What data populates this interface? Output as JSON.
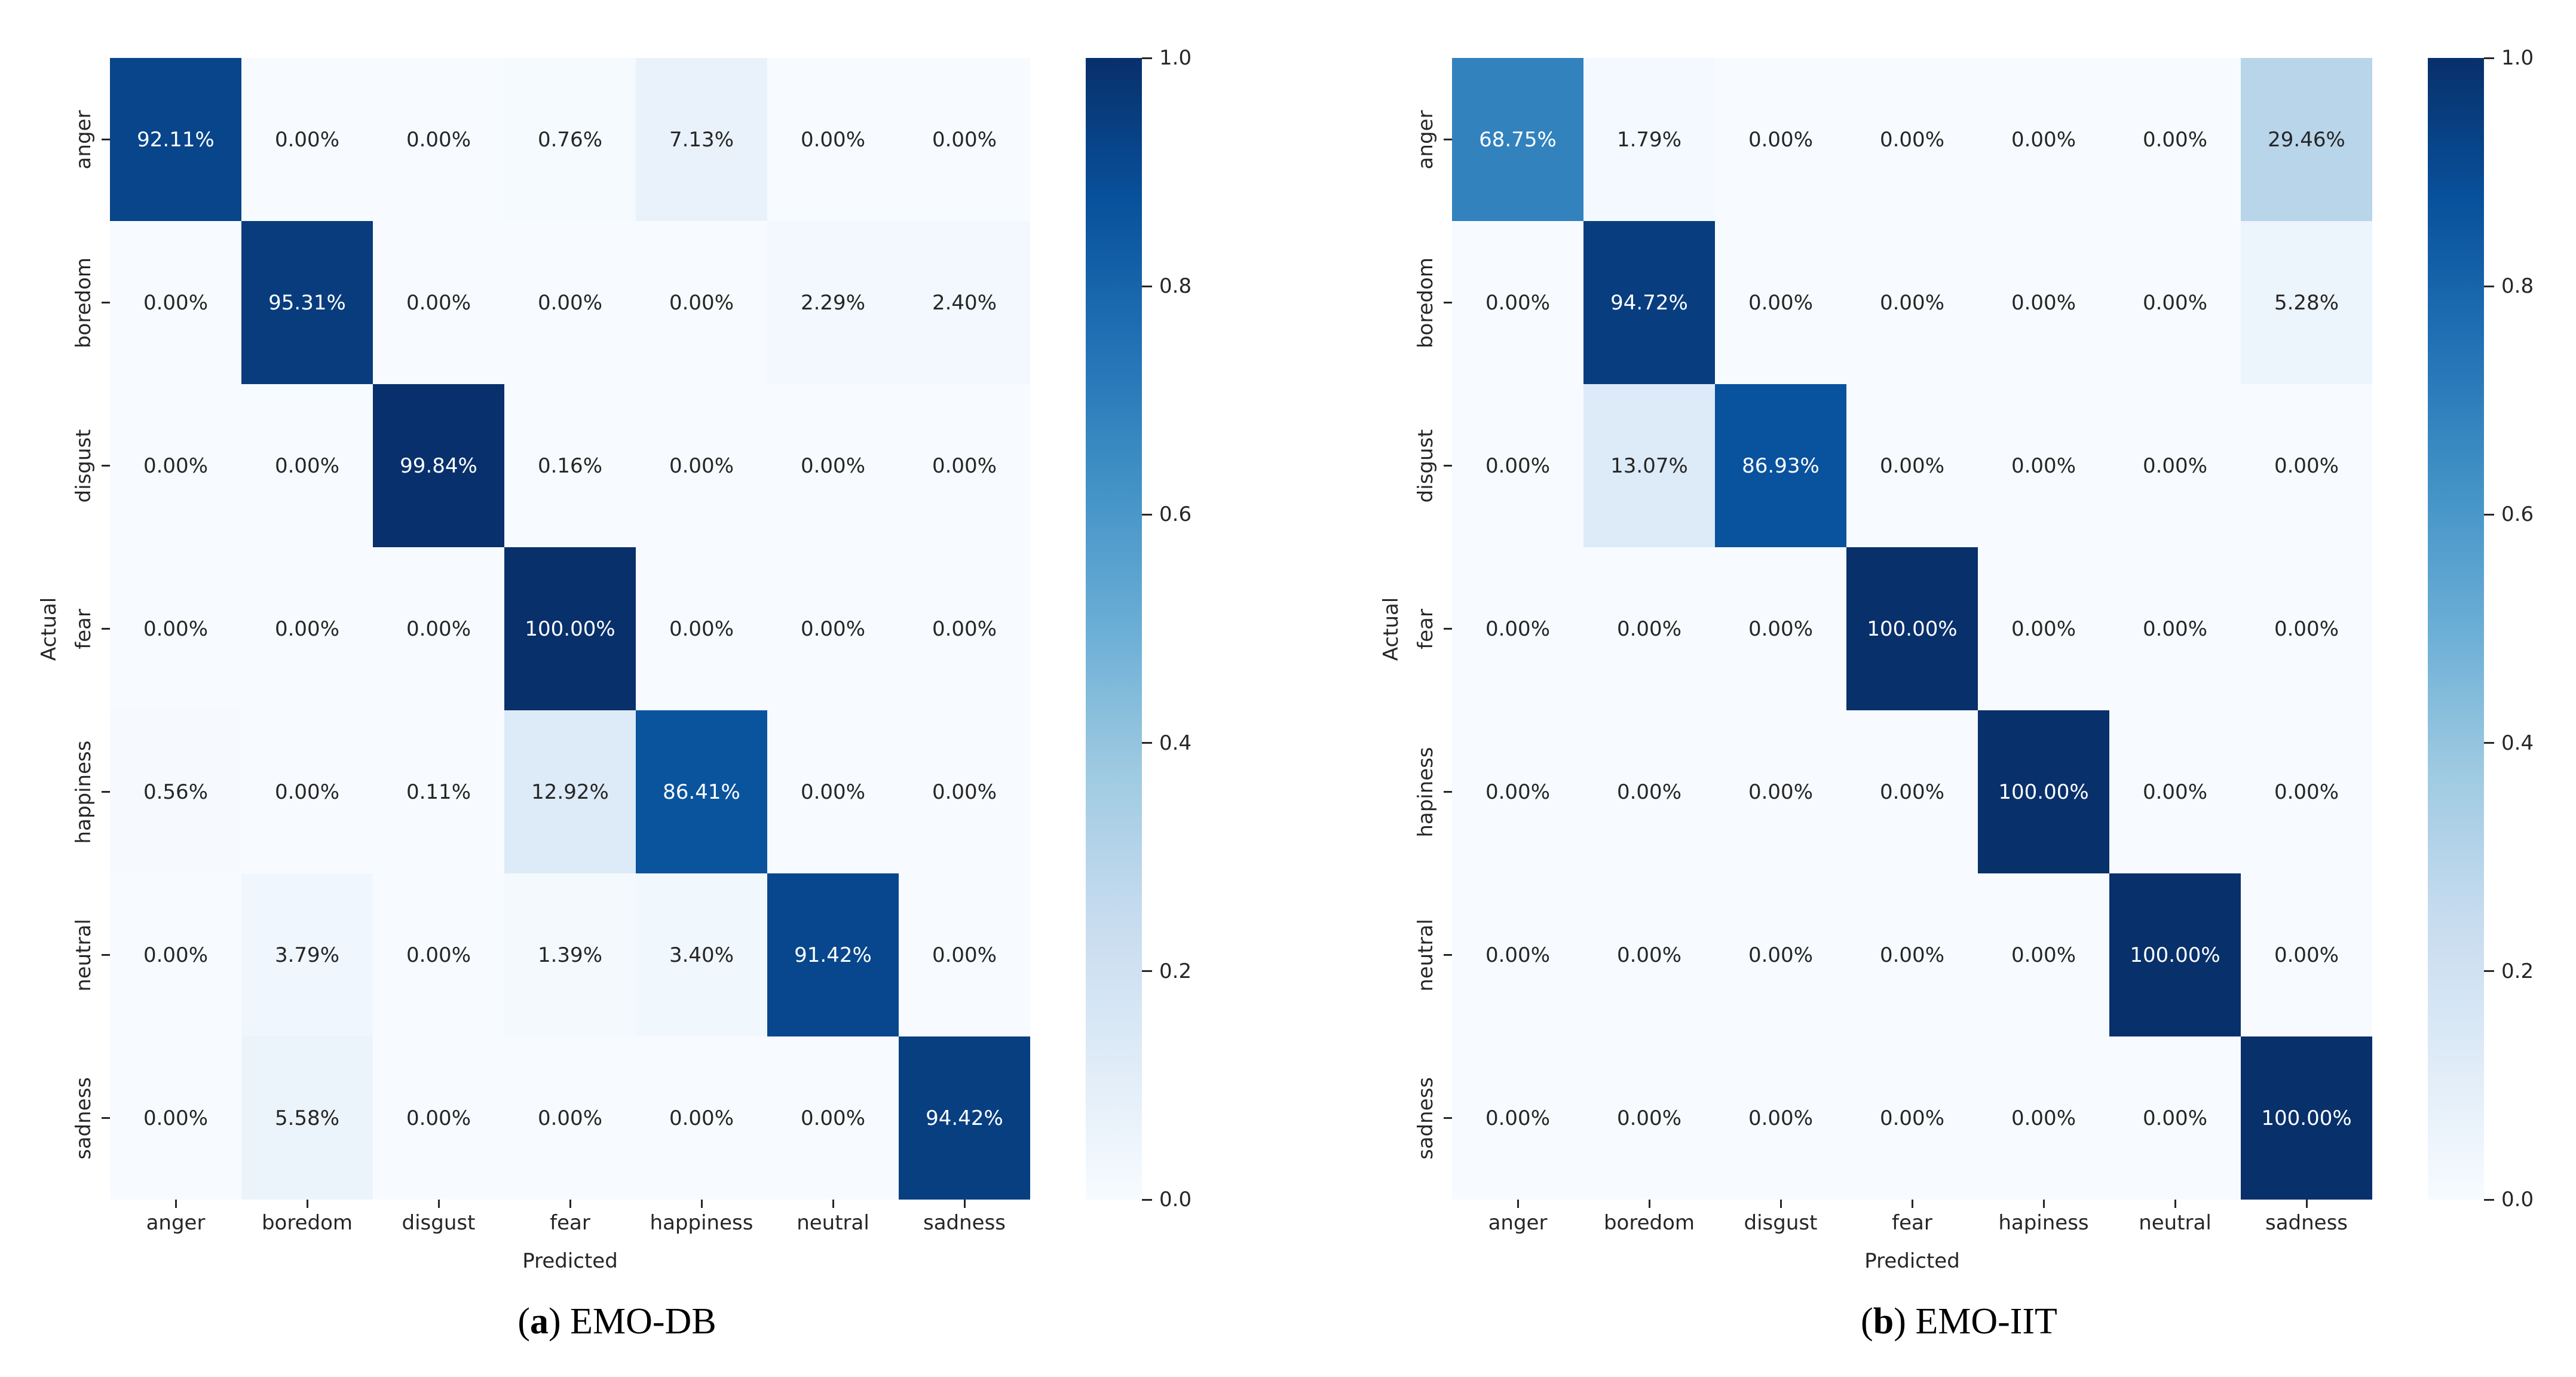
{
  "figure": {
    "background": "#ffffff"
  },
  "colors": {
    "colormap_name": "Blues",
    "colormap_stops": [
      "#f7fbff",
      "#deebf7",
      "#c6dbef",
      "#9ecae1",
      "#6baed6",
      "#4292c6",
      "#2171b5",
      "#08519c",
      "#08306b"
    ],
    "annotation_dark": "#262626",
    "annotation_light": "#ffffff",
    "tick_text": "#262626",
    "caption_text": "#000000"
  },
  "chart_data": [
    {
      "type": "heatmap",
      "dataset": "EMO-DB",
      "caption": {
        "open": "(",
        "letter": "a",
        "close": ") ",
        "title": "EMO-DB"
      },
      "xlabel": "Predicted",
      "ylabel": "Actual",
      "x_categories": [
        "anger",
        "boredom",
        "disgust",
        "fear",
        "happiness",
        "neutral",
        "sadness"
      ],
      "y_categories": [
        "anger",
        "boredom",
        "disgust",
        "fear",
        "happiness",
        "neutral",
        "sadness"
      ],
      "values_percent": [
        [
          92.11,
          0.0,
          0.0,
          0.76,
          7.13,
          0.0,
          0.0
        ],
        [
          0.0,
          95.31,
          0.0,
          0.0,
          0.0,
          2.29,
          2.4
        ],
        [
          0.0,
          0.0,
          99.84,
          0.16,
          0.0,
          0.0,
          0.0
        ],
        [
          0.0,
          0.0,
          0.0,
          100.0,
          0.0,
          0.0,
          0.0
        ],
        [
          0.56,
          0.0,
          0.11,
          12.92,
          86.41,
          0.0,
          0.0
        ],
        [
          0.0,
          3.79,
          0.0,
          1.39,
          3.4,
          91.42,
          0.0
        ],
        [
          0.0,
          5.58,
          0.0,
          0.0,
          0.0,
          0.0,
          94.42
        ]
      ],
      "annotation_format": "{value:.2f}%",
      "vmin": 0,
      "vmax": 1,
      "legend_position": "right-colorbar",
      "grid": false,
      "colorbar_ticks": [
        {
          "value": 1.0,
          "label": "1.0"
        },
        {
          "value": 0.8,
          "label": "0.8"
        },
        {
          "value": 0.6,
          "label": "0.6"
        },
        {
          "value": 0.4,
          "label": "0.4"
        },
        {
          "value": 0.2,
          "label": "0.2"
        },
        {
          "value": 0.0,
          "label": "0.0"
        }
      ]
    },
    {
      "type": "heatmap",
      "dataset": "EMO-IIT",
      "caption": {
        "open": "(",
        "letter": "b",
        "close": ") ",
        "title": "EMO-IIT"
      },
      "xlabel": "Predicted",
      "ylabel": "Actual",
      "x_categories": [
        "anger",
        "boredom",
        "disgust",
        "fear",
        "hapiness",
        "neutral",
        "sadness"
      ],
      "y_categories": [
        "anger",
        "boredom",
        "disgust",
        "fear",
        "hapiness",
        "neutral",
        "sadness"
      ],
      "values_percent": [
        [
          68.75,
          1.79,
          0.0,
          0.0,
          0.0,
          0.0,
          29.46
        ],
        [
          0.0,
          94.72,
          0.0,
          0.0,
          0.0,
          0.0,
          5.28
        ],
        [
          0.0,
          13.07,
          86.93,
          0.0,
          0.0,
          0.0,
          0.0
        ],
        [
          0.0,
          0.0,
          0.0,
          100.0,
          0.0,
          0.0,
          0.0
        ],
        [
          0.0,
          0.0,
          0.0,
          0.0,
          100.0,
          0.0,
          0.0
        ],
        [
          0.0,
          0.0,
          0.0,
          0.0,
          0.0,
          100.0,
          0.0
        ],
        [
          0.0,
          0.0,
          0.0,
          0.0,
          0.0,
          0.0,
          100.0
        ]
      ],
      "annotation_format": "{value:.2f}%",
      "vmin": 0,
      "vmax": 1,
      "legend_position": "right-colorbar",
      "grid": false,
      "colorbar_ticks": [
        {
          "value": 1.0,
          "label": "1.0"
        },
        {
          "value": 0.8,
          "label": "0.8"
        },
        {
          "value": 0.6,
          "label": "0.6"
        },
        {
          "value": 0.4,
          "label": "0.4"
        },
        {
          "value": 0.2,
          "label": "0.2"
        },
        {
          "value": 0.0,
          "label": "0.0"
        }
      ]
    }
  ]
}
